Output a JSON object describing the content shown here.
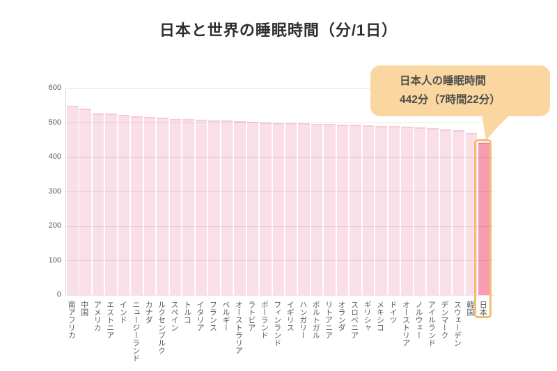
{
  "title": "日本と世界の睡眠時間（分/1日）",
  "callout": {
    "line1": "日本人の睡眠時間",
    "line2": "442分（7時間22分）"
  },
  "chart_data": {
    "type": "bar",
    "title": "日本と世界の睡眠時間（分/1日）",
    "categories": [
      "南アフリカ",
      "中国",
      "アメリカ",
      "エストニア",
      "インド",
      "ニュージーランド",
      "カナダ",
      "ルクセンブルク",
      "スペイン",
      "トルコ",
      "イタリア",
      "フランス",
      "ベルギー",
      "オーストラリア",
      "ラトビア",
      "ポーランド",
      "フィンランド",
      "イギリス",
      "ハンガリー",
      "ポルトガル",
      "リトアニア",
      "オランダ",
      "スロベニア",
      "ギリシャ",
      "メキシコ",
      "ドイツ",
      "オーストリア",
      "ノルウェー",
      "アイルランド",
      "デンマーク",
      "スウェーデン",
      "韓国",
      "日本"
    ],
    "values": [
      550,
      541,
      528,
      527,
      523,
      520,
      517,
      515,
      512,
      511,
      510,
      508,
      507,
      505,
      503,
      501,
      500,
      499,
      498,
      497,
      496,
      495,
      494,
      493,
      491,
      490,
      488,
      487,
      484,
      481,
      478,
      471,
      442
    ],
    "ylim": [
      0,
      600
    ],
    "yticks": [
      0,
      100,
      200,
      300,
      400,
      500,
      600
    ],
    "grid": true,
    "legend": false,
    "highlight": {
      "category": "日本",
      "value": 442
    },
    "colors": {
      "bar": "#FBDFE8",
      "bar_top_edge": "#F7CAD8",
      "highlight_bar": "#F99CB3",
      "highlight_bar_top_edge": "#F4809D",
      "highlight_outline": "#F2BE71",
      "callout_bg": "#FAD7A0",
      "label_text": "#595959",
      "title_text": "#2D2D2D",
      "callout_text": "#4D4D4D"
    }
  }
}
